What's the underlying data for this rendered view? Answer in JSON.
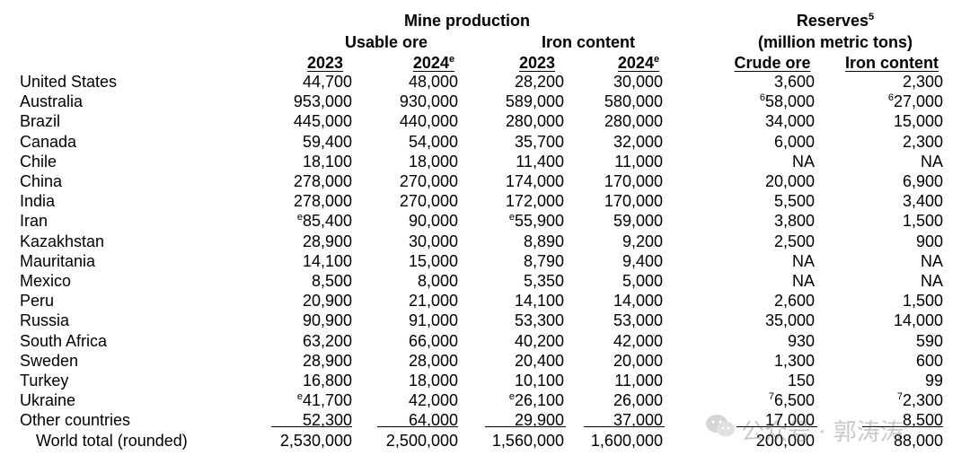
{
  "headers": {
    "mine_production": "Mine production",
    "usable_ore": "Usable ore",
    "iron_content": "Iron content",
    "reserves": "Reserves",
    "reserves_sup": "5",
    "reserves_units": "(million metric tons)",
    "col_2023a": "2023",
    "col_2024a": "2024",
    "col_2024a_sup": "e",
    "col_2023b": "2023",
    "col_2024b": "2024",
    "col_2024b_sup": "e",
    "crude_ore": "Crude ore",
    "iron_content_res": "Iron content"
  },
  "rows": [
    {
      "name": "United States",
      "ore2023": "44,700",
      "ore2024": "48,000",
      "fe2023": "28,200",
      "fe2024": "30,000",
      "res_crude": "3,600",
      "res_fe": "2,300"
    },
    {
      "name": "Australia",
      "ore2023": "953,000",
      "ore2024": "930,000",
      "fe2023": "589,000",
      "fe2024": "580,000",
      "res_crude": "58,000",
      "res_crude_sup": "6",
      "res_fe": "27,000",
      "res_fe_sup": "6"
    },
    {
      "name": "Brazil",
      "ore2023": "445,000",
      "ore2024": "440,000",
      "fe2023": "280,000",
      "fe2024": "280,000",
      "res_crude": "34,000",
      "res_fe": "15,000"
    },
    {
      "name": "Canada",
      "ore2023": "59,400",
      "ore2024": "54,000",
      "fe2023": "35,700",
      "fe2024": "32,000",
      "res_crude": "6,000",
      "res_fe": "2,300"
    },
    {
      "name": "Chile",
      "ore2023": "18,100",
      "ore2024": "18,000",
      "fe2023": "11,400",
      "fe2024": "11,000",
      "res_crude": "NA",
      "res_fe": "NA"
    },
    {
      "name": "China",
      "ore2023": "278,000",
      "ore2024": "270,000",
      "fe2023": "174,000",
      "fe2024": "170,000",
      "res_crude": "20,000",
      "res_fe": "6,900"
    },
    {
      "name": "India",
      "ore2023": "278,000",
      "ore2024": "270,000",
      "fe2023": "172,000",
      "fe2024": "170,000",
      "res_crude": "5,500",
      "res_fe": "3,400"
    },
    {
      "name": "Iran",
      "ore2023": "85,400",
      "ore2023_sup": "e",
      "ore2024": "90,000",
      "fe2023": "55,900",
      "fe2023_sup": "e",
      "fe2024": "59,000",
      "res_crude": "3,800",
      "res_fe": "1,500"
    },
    {
      "name": "Kazakhstan",
      "ore2023": "28,900",
      "ore2024": "30,000",
      "fe2023": "8,890",
      "fe2024": "9,200",
      "res_crude": "2,500",
      "res_fe": "900"
    },
    {
      "name": "Mauritania",
      "ore2023": "14,100",
      "ore2024": "15,000",
      "fe2023": "8,790",
      "fe2024": "9,400",
      "res_crude": "NA",
      "res_fe": "NA"
    },
    {
      "name": "Mexico",
      "ore2023": "8,500",
      "ore2024": "8,000",
      "fe2023": "5,350",
      "fe2024": "5,000",
      "res_crude": "NA",
      "res_fe": "NA"
    },
    {
      "name": "Peru",
      "ore2023": "20,900",
      "ore2024": "21,000",
      "fe2023": "14,100",
      "fe2024": "14,000",
      "res_crude": "2,600",
      "res_fe": "1,500"
    },
    {
      "name": "Russia",
      "ore2023": "90,900",
      "ore2024": "91,000",
      "fe2023": "53,300",
      "fe2024": "53,000",
      "res_crude": "35,000",
      "res_fe": "14,000"
    },
    {
      "name": "South Africa",
      "ore2023": "63,200",
      "ore2024": "66,000",
      "fe2023": "40,200",
      "fe2024": "42,000",
      "res_crude": "930",
      "res_fe": "590"
    },
    {
      "name": "Sweden",
      "ore2023": "28,900",
      "ore2024": "28,000",
      "fe2023": "20,400",
      "fe2024": "20,000",
      "res_crude": "1,300",
      "res_fe": "600"
    },
    {
      "name": "Turkey",
      "ore2023": "16,800",
      "ore2024": "18,000",
      "fe2023": "10,100",
      "fe2024": "11,000",
      "res_crude": "150",
      "res_fe": "99"
    },
    {
      "name": "Ukraine",
      "ore2023": "41,700",
      "ore2023_sup": "e",
      "ore2024": "42,000",
      "fe2023": "26,100",
      "fe2023_sup": "e",
      "fe2024": "26,000",
      "res_crude": "6,500",
      "res_crude_sup": "7",
      "res_fe": "2,300",
      "res_fe_sup": "7"
    },
    {
      "name": "Other countries",
      "ore2023": "52,300",
      "ore2024": "64,000",
      "fe2023": "29,900",
      "fe2024": "37,000",
      "res_crude": "17,000",
      "res_fe": "8,500"
    },
    {
      "name": "World total (rounded)",
      "ore2023": "2,530,000",
      "ore2024": "2,500,000",
      "fe2023": "1,560,000",
      "fe2024": "1,600,000",
      "res_crude": "200,000",
      "res_fe": "88,000"
    }
  ],
  "watermark": {
    "text": "公众号 · 郭涛涛",
    "icon": "wechat-icon"
  }
}
